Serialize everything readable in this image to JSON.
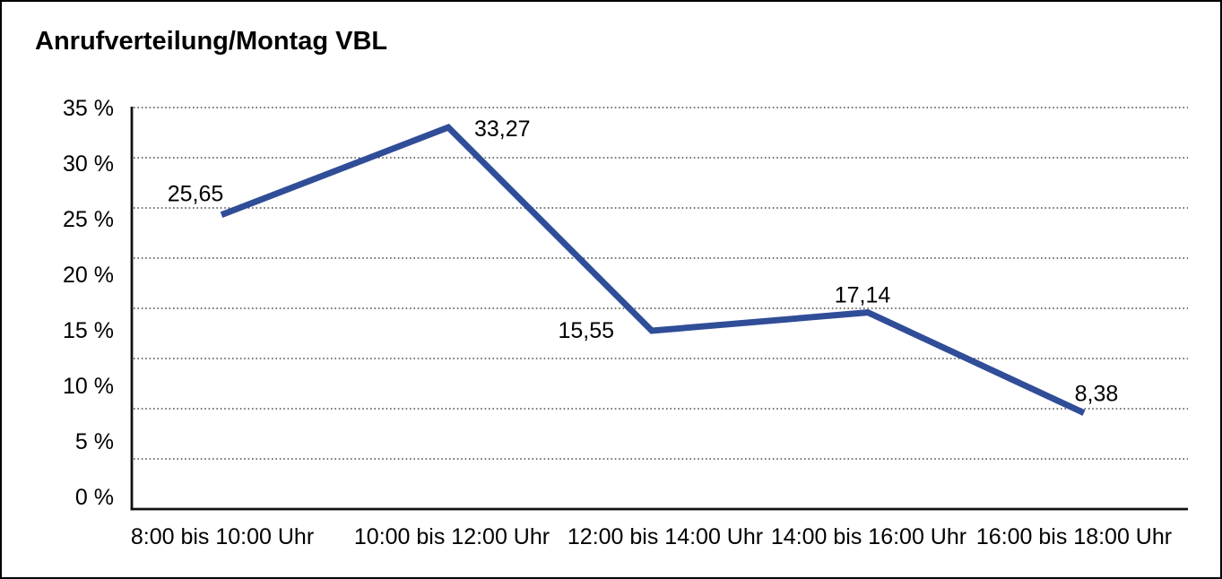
{
  "page": {
    "background_color": "#ffffff",
    "frame_border_color": "#000000"
  },
  "chart_data": {
    "type": "line",
    "title": "Anrufverteilung/Montag VBL",
    "categories": [
      "8:00 bis 10:00 Uhr",
      "10:00 bis 12:00 Uhr",
      "12:00 bis 14:00 Uhr",
      "14:00 bis 16:00 Uhr",
      "16:00 bis 18:00 Uhr"
    ],
    "values": [
      25.65,
      33.27,
      15.55,
      17.14,
      8.38
    ],
    "point_labels": [
      "25,65",
      "33,27",
      "15,55",
      "17,14",
      "8,38"
    ],
    "y_ticks": [
      "35 %",
      "30 %",
      "25 %",
      "20 %",
      "15 %",
      "10 %",
      "5 %",
      "0 %"
    ],
    "ylim": [
      0,
      35
    ],
    "xlabel": "",
    "ylabel": "",
    "grid": {
      "horizontal": "dotted",
      "vertical": "none",
      "intervals": 8
    },
    "legend": "none",
    "line_color": "#304D98",
    "axis_color": "#111111",
    "gridline_color": "#4a4a4a",
    "text_color": "#000000"
  }
}
